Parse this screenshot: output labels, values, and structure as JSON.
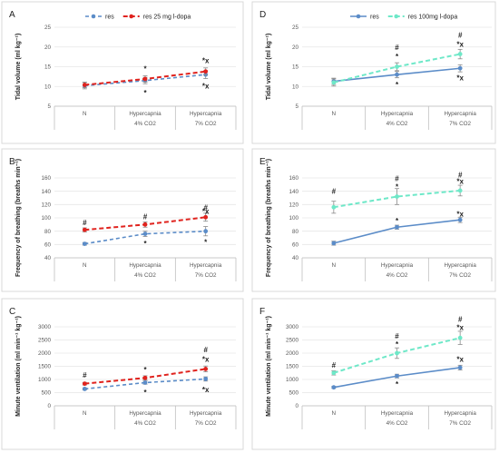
{
  "chart_data": [
    {
      "type": "line",
      "panel": "A",
      "categories": [
        [
          "N",
          ""
        ],
        [
          "Hypercapnia",
          "4% CO2"
        ],
        [
          "Hypercapnia",
          "7% CO2"
        ]
      ],
      "ylabel": "Tidal volume (ml kg⁻¹)",
      "ylim": [
        5,
        25
      ],
      "yticks": [
        5,
        10,
        15,
        20,
        25
      ],
      "grid": true,
      "legend": "top-center",
      "series": [
        {
          "name": "res",
          "color": "#5b8cc8",
          "dash": true,
          "values": [
            10.2,
            11.5,
            13.0
          ],
          "err": [
            0.8,
            0.8,
            1.0
          ]
        },
        {
          "name": "res 25 mg l-dopa",
          "color": "#e0231e",
          "dash": true,
          "values": [
            10.4,
            11.9,
            13.8
          ],
          "err": [
            0.7,
            0.8,
            0.9
          ]
        }
      ],
      "annotations": [
        {
          "cat": 1,
          "value": 14.5,
          "text": "*"
        },
        {
          "cat": 1,
          "value": 8.5,
          "text": "*"
        },
        {
          "cat": 2,
          "value": 16.6,
          "text": "*x"
        },
        {
          "cat": 2,
          "value": 10.2,
          "text": "*x"
        }
      ]
    },
    {
      "type": "line",
      "panel": "D",
      "categories": [
        [
          "N",
          ""
        ],
        [
          "Hypercapnia",
          "4% CO2"
        ],
        [
          "Hypercapnia",
          "7% CO2"
        ]
      ],
      "ylabel": "Tidal volume (ml kg⁻¹)",
      "ylim": [
        5,
        25
      ],
      "yticks": [
        5,
        10,
        15,
        20,
        25
      ],
      "grid": true,
      "legend": "top-center",
      "series": [
        {
          "name": "res",
          "color": "#5b8cc8",
          "dash": false,
          "values": [
            11.3,
            13.0,
            14.6
          ],
          "err": [
            0.8,
            0.8,
            0.9
          ]
        },
        {
          "name": "res 100mg l-dopa",
          "color": "#6ee8c8",
          "dash": true,
          "values": [
            11.0,
            15.0,
            18.2
          ],
          "err": [
            0.9,
            1.0,
            1.2
          ]
        }
      ],
      "annotations": [
        {
          "cat": 1,
          "value": 20.0,
          "text": "#"
        },
        {
          "cat": 1,
          "value": 17.6,
          "text": "*"
        },
        {
          "cat": 1,
          "value": 10.5,
          "text": "*"
        },
        {
          "cat": 2,
          "value": 23.0,
          "text": "#"
        },
        {
          "cat": 2,
          "value": 20.8,
          "text": "*x"
        },
        {
          "cat": 2,
          "value": 12.2,
          "text": "*x"
        }
      ]
    },
    {
      "type": "line",
      "panel": "B",
      "categories": [
        [
          "N",
          ""
        ],
        [
          "Hypercapnia",
          "4% CO2"
        ],
        [
          "Hypercapnia",
          "7% CO2"
        ]
      ],
      "ylabel": "Frequency of breathing (breaths min⁻¹)",
      "ylim": [
        40,
        160
      ],
      "yticks": [
        40,
        60,
        80,
        100,
        120,
        140,
        160
      ],
      "grid": true,
      "legend": "none",
      "series": [
        {
          "name": "res",
          "color": "#5b8cc8",
          "dash": true,
          "values": [
            61,
            76,
            80
          ],
          "err": [
            2,
            4,
            7
          ]
        },
        {
          "name": "res 25 mg l-dopa",
          "color": "#e0231e",
          "dash": true,
          "values": [
            82,
            90,
            101
          ],
          "err": [
            3,
            4,
            6
          ]
        }
      ],
      "annotations": [
        {
          "cat": 0,
          "value": 93,
          "text": "#"
        },
        {
          "cat": 1,
          "value": 102,
          "text": "#"
        },
        {
          "cat": 1,
          "value": 62,
          "text": "*"
        },
        {
          "cat": 2,
          "value": 116,
          "text": "#"
        },
        {
          "cat": 2,
          "value": 110,
          "text": "*x"
        },
        {
          "cat": 2,
          "value": 64,
          "text": "*"
        }
      ]
    },
    {
      "type": "line",
      "panel": "E",
      "categories": [
        [
          "N",
          ""
        ],
        [
          "Hypercapnia",
          "4% CO2"
        ],
        [
          "Hypercapnia",
          "7% CO2"
        ]
      ],
      "ylabel": "Frequency of breathing (breaths min⁻¹)",
      "ylim": [
        40,
        160
      ],
      "yticks": [
        40,
        60,
        80,
        100,
        120,
        140,
        160
      ],
      "grid": true,
      "legend": "none",
      "series": [
        {
          "name": "res",
          "color": "#5b8cc8",
          "dash": false,
          "values": [
            62,
            86,
            97
          ],
          "err": [
            3,
            3,
            4
          ]
        },
        {
          "name": "res 100mg l-dopa",
          "color": "#6ee8c8",
          "dash": true,
          "values": [
            116,
            132,
            141
          ],
          "err": [
            9,
            12,
            8
          ]
        }
      ],
      "annotations": [
        {
          "cat": 0,
          "value": 140,
          "text": "#"
        },
        {
          "cat": 1,
          "value": 159,
          "text": "#"
        },
        {
          "cat": 1,
          "value": 147,
          "text": "*"
        },
        {
          "cat": 1,
          "value": 96,
          "text": "*"
        },
        {
          "cat": 2,
          "value": 165,
          "text": "#"
        },
        {
          "cat": 2,
          "value": 155,
          "text": "*x"
        },
        {
          "cat": 2,
          "value": 106,
          "text": "*x"
        }
      ]
    },
    {
      "type": "line",
      "panel": "C",
      "categories": [
        [
          "N",
          ""
        ],
        [
          "Hypercapnia",
          "4% CO2"
        ],
        [
          "Hypercapnia",
          "7% CO2"
        ]
      ],
      "ylabel": "Minute ventilation (ml min⁻¹ kg⁻¹)",
      "ylim": [
        0,
        3000
      ],
      "yticks": [
        0,
        500,
        1000,
        1500,
        2000,
        2500,
        3000
      ],
      "grid": true,
      "legend": "none",
      "series": [
        {
          "name": "res",
          "color": "#5b8cc8",
          "dash": true,
          "values": [
            640,
            880,
            1020
          ],
          "err": [
            40,
            60,
            80
          ]
        },
        {
          "name": "res 25 mg l-dopa",
          "color": "#e0231e",
          "dash": true,
          "values": [
            840,
            1060,
            1400
          ],
          "err": [
            50,
            80,
            110
          ]
        }
      ],
      "annotations": [
        {
          "cat": 0,
          "value": 1170,
          "text": "#"
        },
        {
          "cat": 1,
          "value": 1380,
          "text": "*"
        },
        {
          "cat": 1,
          "value": 520,
          "text": "*"
        },
        {
          "cat": 2,
          "value": 2140,
          "text": "#"
        },
        {
          "cat": 2,
          "value": 1780,
          "text": "*x"
        },
        {
          "cat": 2,
          "value": 620,
          "text": "*x"
        }
      ]
    },
    {
      "type": "line",
      "panel": "F",
      "categories": [
        [
          "N",
          ""
        ],
        [
          "Hypercapnia",
          "4% CO2"
        ],
        [
          "Hypercapnia",
          "7% CO2"
        ]
      ],
      "ylabel": "Minute ventilation (ml min⁻¹ kg⁻¹)",
      "ylim": [
        0,
        3000
      ],
      "yticks": [
        0,
        500,
        1000,
        1500,
        2000,
        2500,
        3000
      ],
      "grid": true,
      "legend": "none",
      "series": [
        {
          "name": "res",
          "color": "#5b8cc8",
          "dash": false,
          "values": [
            700,
            1130,
            1450
          ],
          "err": [
            40,
            70,
            90
          ]
        },
        {
          "name": "res 100mg l-dopa",
          "color": "#6ee8c8",
          "dash": true,
          "values": [
            1250,
            2000,
            2580
          ],
          "err": [
            80,
            200,
            250
          ]
        }
      ],
      "annotations": [
        {
          "cat": 0,
          "value": 1560,
          "text": "#"
        },
        {
          "cat": 1,
          "value": 2650,
          "text": "#"
        },
        {
          "cat": 1,
          "value": 2350,
          "text": "*"
        },
        {
          "cat": 1,
          "value": 830,
          "text": "*"
        },
        {
          "cat": 2,
          "value": 3300,
          "text": "#"
        },
        {
          "cat": 2,
          "value": 2980,
          "text": "*x"
        },
        {
          "cat": 2,
          "value": 1780,
          "text": "*x"
        }
      ]
    }
  ]
}
